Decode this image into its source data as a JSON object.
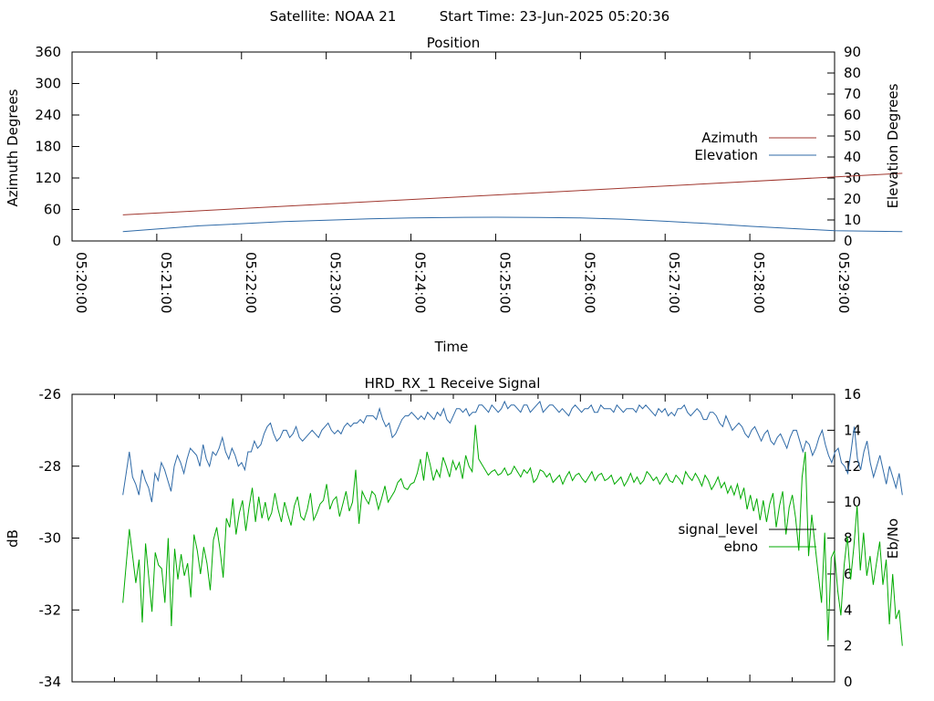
{
  "header": {
    "satellite_label": "Satellite: NOAA 21",
    "start_time_label": "Start Time: 23-Jun-2025 05:20:36"
  },
  "chart_data": {
    "charts": [
      {
        "type": "line",
        "title": "Position",
        "xlabel": "Time",
        "ylabel_left": "Azimuth Degrees",
        "ylabel_right": "Elevation Degrees",
        "x_ticks": [
          "05:20:00",
          "05:21:00",
          "05:22:00",
          "05:23:00",
          "05:24:00",
          "05:25:00",
          "05:26:00",
          "05:27:00",
          "05:28:00",
          "05:29:00"
        ],
        "x_range": [
          "05:20:00",
          "05:29:00"
        ],
        "y_left_ticks": [
          0,
          60,
          120,
          180,
          240,
          300,
          360
        ],
        "y_left_range": [
          0,
          360
        ],
        "y_right_ticks": [
          0,
          10,
          20,
          30,
          40,
          50,
          60,
          70,
          80,
          90
        ],
        "y_right_range": [
          0,
          90
        ],
        "legend_position": "right",
        "series": [
          {
            "name": "Azimuth",
            "axis": "left",
            "color": "#a0372f",
            "x": [
              "05:20:36",
              "05:29:48"
            ],
            "values": [
              49.8,
              128.9
            ]
          },
          {
            "name": "Elevation",
            "axis": "right",
            "color": "#2f6aa7",
            "x": [
              "05:20:36",
              "05:21:30",
              "05:22:30",
              "05:23:30",
              "05:24:00",
              "05:24:30",
              "05:25:00",
              "05:25:30",
              "05:26:00",
              "05:26:30",
              "05:27:00",
              "05:27:30",
              "05:28:00",
              "05:28:30",
              "05:29:00",
              "05:29:48"
            ],
            "values": [
              4.5,
              7.2,
              9.2,
              10.5,
              11.0,
              11.2,
              11.3,
              11.2,
              11.0,
              10.4,
              9.4,
              8.3,
              7.0,
              5.9,
              4.9,
              4.5
            ]
          }
        ]
      },
      {
        "type": "line",
        "title": "HRD_RX_1 Receive Signal",
        "ylabel_left": "dB",
        "ylabel_right": "Eb/No",
        "y_left_ticks": [
          -26,
          -28,
          -30,
          -32,
          -34
        ],
        "y_left_range": [
          -34,
          -26
        ],
        "y_right_ticks": [
          0,
          2,
          4,
          6,
          8,
          10,
          12,
          14,
          16
        ],
        "y_right_range": [
          0,
          16
        ],
        "x_range": [
          "05:20:00",
          "05:29:00"
        ],
        "legend_position": "right",
        "series": [
          {
            "name": "signal_level",
            "axis": "left",
            "color": "#2f6aa7",
            "x_start": "05:20:36",
            "x_end": "05:29:48",
            "values": [
              -28.8,
              -28.2,
              -27.6,
              -28.3,
              -28.5,
              -28.8,
              -28.1,
              -28.4,
              -28.6,
              -29.0,
              -28.2,
              -28.4,
              -27.9,
              -28.1,
              -28.4,
              -28.7,
              -28.0,
              -27.7,
              -27.9,
              -28.2,
              -27.8,
              -27.5,
              -27.6,
              -27.7,
              -28.0,
              -27.4,
              -27.8,
              -28.0,
              -27.6,
              -27.7,
              -27.5,
              -27.2,
              -27.6,
              -27.8,
              -27.5,
              -27.7,
              -28.0,
              -27.9,
              -28.1,
              -27.6,
              -27.6,
              -27.3,
              -27.5,
              -27.4,
              -27.1,
              -26.9,
              -26.8,
              -27.1,
              -27.3,
              -27.2,
              -27.0,
              -27.0,
              -27.2,
              -27.1,
              -26.9,
              -27.2,
              -27.3,
              -27.2,
              -27.1,
              -27.0,
              -27.1,
              -27.2,
              -27.0,
              -26.9,
              -26.8,
              -27.0,
              -27.1,
              -27.0,
              -27.1,
              -26.9,
              -26.8,
              -26.9,
              -26.8,
              -26.8,
              -26.7,
              -26.8,
              -26.6,
              -26.6,
              -26.6,
              -26.7,
              -26.4,
              -26.7,
              -26.9,
              -26.8,
              -27.2,
              -27.1,
              -26.9,
              -26.7,
              -26.6,
              -26.6,
              -26.5,
              -26.6,
              -26.7,
              -26.6,
              -26.7,
              -26.5,
              -26.6,
              -26.7,
              -26.5,
              -26.6,
              -26.4,
              -26.7,
              -26.8,
              -26.6,
              -26.4,
              -26.4,
              -26.5,
              -26.4,
              -26.6,
              -26.5,
              -26.5,
              -26.3,
              -26.3,
              -26.4,
              -26.5,
              -26.3,
              -26.4,
              -26.5,
              -26.4,
              -26.2,
              -26.4,
              -26.3,
              -26.3,
              -26.4,
              -26.5,
              -26.3,
              -26.3,
              -26.5,
              -26.4,
              -26.3,
              -26.2,
              -26.5,
              -26.4,
              -26.3,
              -26.3,
              -26.4,
              -26.5,
              -26.4,
              -26.5,
              -26.6,
              -26.4,
              -26.3,
              -26.4,
              -26.5,
              -26.4,
              -26.4,
              -26.3,
              -26.5,
              -26.5,
              -26.3,
              -26.4,
              -26.4,
              -26.4,
              -26.5,
              -26.3,
              -26.4,
              -26.5,
              -26.4,
              -26.4,
              -26.4,
              -26.5,
              -26.3,
              -26.4,
              -26.3,
              -26.4,
              -26.5,
              -26.6,
              -26.4,
              -26.5,
              -26.4,
              -26.6,
              -26.5,
              -26.6,
              -26.4,
              -26.4,
              -26.3,
              -26.5,
              -26.6,
              -26.5,
              -26.4,
              -26.5,
              -26.7,
              -26.7,
              -26.5,
              -26.5,
              -26.6,
              -26.8,
              -26.9,
              -26.6,
              -26.8,
              -27.0,
              -26.9,
              -26.8,
              -26.9,
              -27.1,
              -27.2,
              -27.0,
              -26.9,
              -27.1,
              -27.3,
              -27.1,
              -27.0,
              -27.3,
              -27.4,
              -27.2,
              -27.1,
              -27.3,
              -27.5,
              -27.2,
              -27.0,
              -27.0,
              -27.3,
              -27.6,
              -27.3,
              -27.4,
              -27.7,
              -27.5,
              -27.2,
              -27.0,
              -27.4,
              -27.7,
              -27.9,
              -27.6,
              -27.5,
              -27.9,
              -28.0,
              -28.2,
              -27.6,
              -26.9,
              -27.8,
              -28.1,
              -27.6,
              -27.3,
              -27.9,
              -28.3,
              -28.0,
              -27.7,
              -28.1,
              -28.5,
              -28.0,
              -28.3,
              -28.6,
              -28.2,
              -28.8
            ]
          },
          {
            "name": "ebno",
            "axis": "right",
            "color": "#00aa00",
            "x_start": "05:20:36",
            "x_end": "05:29:48",
            "values": [
              4.4,
              6.5,
              8.5,
              7.0,
              5.5,
              6.8,
              3.3,
              7.7,
              5.8,
              3.9,
              7.2,
              6.5,
              6.3,
              4.4,
              8.0,
              3.1,
              7.4,
              5.7,
              7.1,
              5.9,
              6.6,
              4.7,
              8.2,
              7.3,
              6.0,
              7.5,
              6.6,
              5.1,
              7.9,
              8.6,
              7.4,
              5.8,
              9.1,
              8.6,
              10.2,
              8.2,
              9.4,
              10.1,
              8.4,
              9.7,
              10.8,
              8.9,
              10.3,
              9.1,
              10.0,
              9.0,
              9.4,
              10.5,
              9.6,
              8.9,
              10.0,
              9.3,
              8.7,
              9.8,
              10.3,
              9.2,
              9.0,
              9.6,
              10.5,
              9.0,
              9.4,
              9.9,
              10.1,
              11.0,
              9.6,
              10.1,
              10.3,
              9.2,
              9.9,
              10.6,
              9.5,
              10.0,
              11.8,
              8.8,
              10.6,
              10.2,
              9.9,
              10.6,
              10.4,
              9.6,
              10.2,
              10.9,
              10.0,
              10.3,
              10.6,
              11.1,
              11.3,
              10.8,
              10.7,
              11.0,
              11.1,
              11.6,
              12.4,
              11.2,
              12.8,
              12.1,
              11.2,
              11.8,
              11.4,
              12.5,
              12.0,
              11.4,
              12.3,
              11.8,
              12.2,
              11.3,
              12.6,
              12.0,
              11.7,
              14.3,
              12.4,
              12.1,
              11.8,
              11.5,
              11.7,
              11.8,
              11.5,
              11.6,
              11.9,
              11.5,
              11.6,
              12.0,
              11.7,
              11.4,
              11.8,
              11.6,
              11.9,
              11.1,
              11.3,
              11.8,
              11.7,
              11.4,
              11.6,
              11.1,
              11.3,
              11.5,
              11.0,
              11.4,
              11.7,
              11.2,
              11.5,
              11.6,
              11.3,
              11.1,
              11.4,
              11.7,
              11.2,
              11.5,
              11.6,
              11.2,
              11.3,
              11.5,
              11.0,
              11.2,
              11.4,
              10.9,
              11.2,
              11.6,
              11.1,
              11.4,
              11.0,
              11.2,
              11.7,
              11.5,
              11.2,
              11.4,
              11.0,
              11.3,
              11.6,
              11.2,
              11.1,
              11.5,
              11.3,
              11.0,
              11.7,
              11.4,
              11.2,
              11.6,
              11.3,
              10.9,
              11.5,
              11.2,
              10.7,
              11.0,
              11.4,
              10.8,
              11.1,
              10.5,
              10.9,
              10.4,
              11.0,
              10.2,
              10.8,
              9.6,
              10.4,
              9.5,
              10.2,
              9.0,
              10.1,
              8.9,
              9.9,
              10.5,
              8.6,
              9.8,
              10.6,
              8.2,
              9.7,
              10.4,
              9.1,
              7.3,
              11.4,
              12.8,
              7.0,
              9.3,
              7.6,
              6.0,
              4.4,
              8.3,
              2.3,
              6.9,
              7.3,
              5.1,
              3.7,
              6.5,
              8.1,
              5.7,
              7.5,
              9.8,
              6.2,
              8.3,
              5.9,
              7.0,
              5.4,
              6.6,
              7.8,
              5.4,
              6.8,
              3.2,
              6.0,
              3.5,
              4.0,
              2.0
            ]
          }
        ]
      }
    ]
  }
}
